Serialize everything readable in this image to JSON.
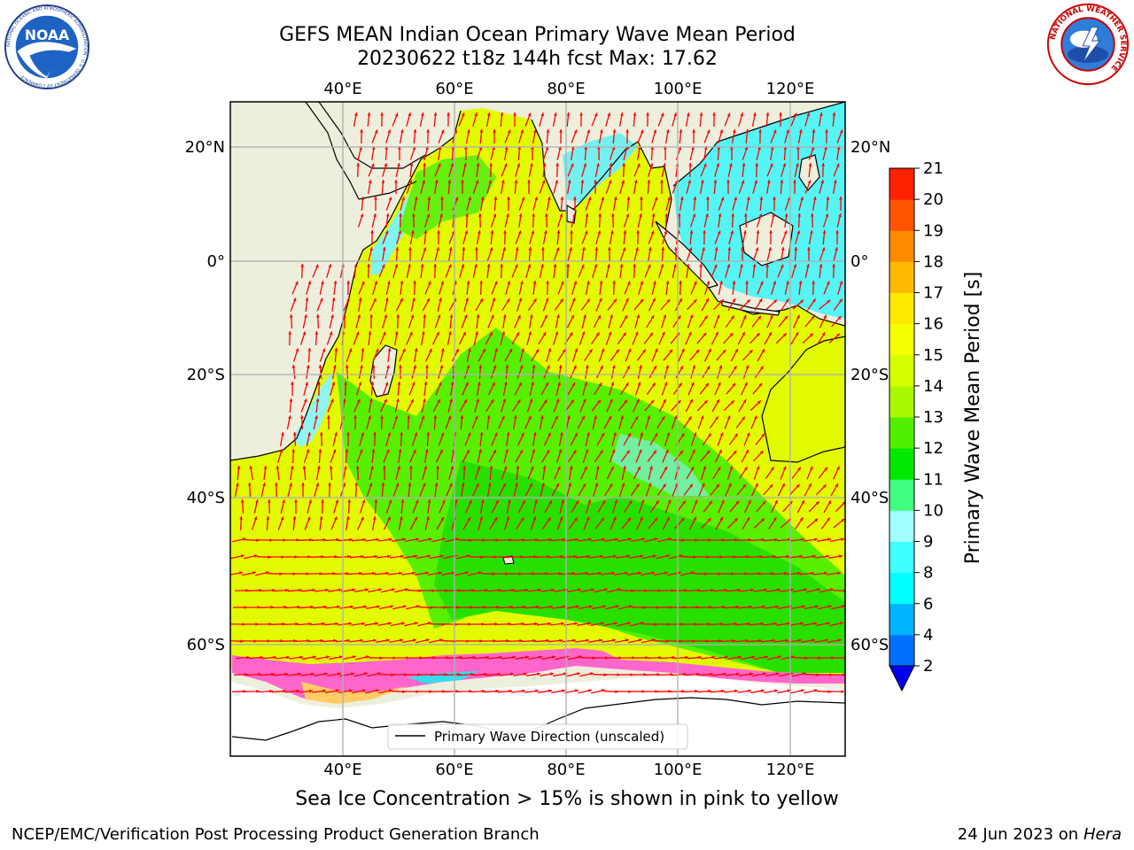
{
  "title_line1": "GEFS MEAN Indian Ocean Primary Wave Mean Period",
  "title_line2": "20230622 t18z 144h fcst   Max: 17.62",
  "lon_labels": [
    "40°E",
    "60°E",
    "80°E",
    "100°E",
    "120°E"
  ],
  "lat_labels": [
    "20°N",
    "0°",
    "20°S",
    "40°S",
    "60°S"
  ],
  "legend_label": "Primary Wave Direction (unscaled)",
  "colorbar": {
    "label": "Primary Wave Mean Period [s]",
    "ticks": [
      "2",
      "4",
      "6",
      "8",
      "9",
      "10",
      "11",
      "12",
      "13",
      "14",
      "15",
      "16",
      "17",
      "18",
      "19",
      "20",
      "21"
    ],
    "colors": [
      "#0070ff",
      "#00b4ff",
      "#00ffff",
      "#40ffff",
      "#a0ffff",
      "#40ff80",
      "#00e800",
      "#50f000",
      "#a8f800",
      "#d8ff00",
      "#f4ff00",
      "#ffea00",
      "#ffbb00",
      "#ff8c00",
      "#ff5500",
      "#ff2200",
      "#ff0000"
    ]
  },
  "ice_note": "Sea Ice Concentration > 15% is shown in pink to yellow",
  "footer_left": "NCEP/EMC/Verification Post Processing Product Generation Branch",
  "footer_date": "24 Jun 2023 on",
  "footer_host": "Hera",
  "logos": {
    "noaa": {
      "icon": "noaa-logo-icon",
      "text": "NOAA",
      "ring_text": "NATIONAL OCEANIC AND ATMOSPHERIC ADMINISTRATION · U.S. DEPARTMENT OF COMMERCE"
    },
    "nws": {
      "icon": "nws-logo-icon",
      "ring_text": "NATIONAL WEATHER SERVICE"
    }
  },
  "colors": {
    "land": "#eeeedd",
    "arrow": "#ff0000",
    "grid": "#b0b0b0",
    "ice_pink": "#ff66cc"
  }
}
